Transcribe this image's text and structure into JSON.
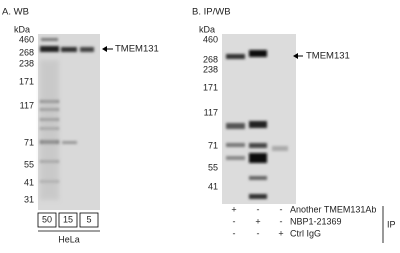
{
  "panel_a": {
    "label": "A. WB",
    "unit": "kDa",
    "markers": [
      460,
      268,
      238,
      171,
      117,
      71,
      55,
      41,
      31
    ],
    "target": "TMEM131",
    "lanes": [
      50,
      15,
      5
    ],
    "cell_line": "HeLa"
  },
  "panel_b": {
    "label": "B. IP/WB",
    "unit": "kDa",
    "markers": [
      460,
      268,
      238,
      171,
      117,
      71,
      55,
      41
    ],
    "target": "TMEM131",
    "rows": [
      {
        "signs": [
          "+",
          "-",
          "-"
        ],
        "label": "Another TMEM131Ab"
      },
      {
        "signs": [
          "-",
          "+",
          "-"
        ],
        "label": "NBP1-21369"
      },
      {
        "signs": [
          "-",
          "-",
          "+"
        ],
        "label": "Ctrl IgG"
      }
    ],
    "group": "IP"
  }
}
